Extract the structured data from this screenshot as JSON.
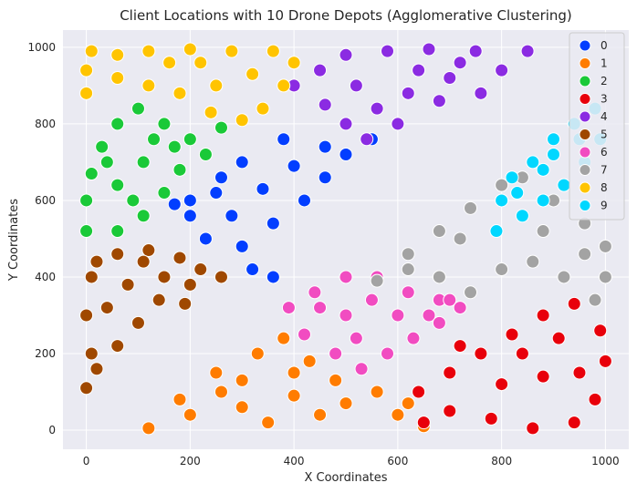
{
  "chart_data": {
    "type": "scatter",
    "title": "Client Locations with 10 Drone Depots (Agglomerative Clustering)",
    "xlabel": "X Coordinates",
    "ylabel": "Y Coordinates",
    "xlim": [
      -45,
      1045
    ],
    "ylim": [
      -50,
      1045
    ],
    "xticks": [
      0,
      200,
      400,
      600,
      800,
      1000
    ],
    "yticks": [
      0,
      200,
      400,
      600,
      800,
      1000
    ],
    "grid": true,
    "legend_position": "top-right",
    "series": [
      {
        "name": "0",
        "color": "#023eff",
        "points": [
          [
            380,
            760
          ],
          [
            300,
            700
          ],
          [
            250,
            620
          ],
          [
            200,
            560
          ],
          [
            230,
            500
          ],
          [
            300,
            480
          ],
          [
            360,
            540
          ],
          [
            420,
            600
          ],
          [
            460,
            660
          ],
          [
            500,
            720
          ],
          [
            550,
            760
          ],
          [
            460,
            740
          ],
          [
            340,
            630
          ],
          [
            280,
            560
          ],
          [
            200,
            600
          ],
          [
            360,
            400
          ],
          [
            320,
            420
          ],
          [
            400,
            690
          ],
          [
            260,
            660
          ],
          [
            170,
            590
          ]
        ]
      },
      {
        "name": "1",
        "color": "#ff7c00",
        "points": [
          [
            120,
            5
          ],
          [
            200,
            40
          ],
          [
            300,
            60
          ],
          [
            400,
            90
          ],
          [
            500,
            70
          ],
          [
            600,
            40
          ],
          [
            650,
            10
          ],
          [
            250,
            150
          ],
          [
            330,
            200
          ],
          [
            380,
            240
          ],
          [
            430,
            180
          ],
          [
            480,
            130
          ],
          [
            560,
            100
          ],
          [
            450,
            40
          ],
          [
            350,
            20
          ],
          [
            260,
            100
          ],
          [
            180,
            80
          ],
          [
            620,
            70
          ],
          [
            400,
            150
          ],
          [
            300,
            130
          ]
        ]
      },
      {
        "name": "2",
        "color": "#1ac938",
        "points": [
          [
            0,
            520
          ],
          [
            0,
            600
          ],
          [
            10,
            670
          ],
          [
            30,
            740
          ],
          [
            60,
            800
          ],
          [
            100,
            840
          ],
          [
            150,
            800
          ],
          [
            200,
            760
          ],
          [
            260,
            790
          ],
          [
            230,
            720
          ],
          [
            180,
            680
          ],
          [
            150,
            620
          ],
          [
            110,
            560
          ],
          [
            60,
            520
          ],
          [
            110,
            700
          ],
          [
            60,
            640
          ],
          [
            170,
            740
          ],
          [
            130,
            760
          ],
          [
            40,
            700
          ],
          [
            90,
            600
          ]
        ]
      },
      {
        "name": "3",
        "color": "#e8000b",
        "points": [
          [
            640,
            100
          ],
          [
            700,
            150
          ],
          [
            760,
            200
          ],
          [
            820,
            250
          ],
          [
            880,
            300
          ],
          [
            940,
            330
          ],
          [
            990,
            260
          ],
          [
            1000,
            180
          ],
          [
            980,
            80
          ],
          [
            940,
            20
          ],
          [
            860,
            5
          ],
          [
            780,
            30
          ],
          [
            700,
            50
          ],
          [
            650,
            20
          ],
          [
            880,
            140
          ],
          [
            800,
            120
          ],
          [
            720,
            220
          ],
          [
            950,
            150
          ],
          [
            840,
            200
          ],
          [
            910,
            240
          ]
        ]
      },
      {
        "name": "4",
        "color": "#8b2be2",
        "points": [
          [
            400,
            900
          ],
          [
            450,
            940
          ],
          [
            500,
            980
          ],
          [
            580,
            990
          ],
          [
            660,
            995
          ],
          [
            750,
            990
          ],
          [
            850,
            990
          ],
          [
            800,
            940
          ],
          [
            700,
            920
          ],
          [
            620,
            880
          ],
          [
            560,
            840
          ],
          [
            500,
            800
          ],
          [
            460,
            850
          ],
          [
            760,
            880
          ],
          [
            680,
            860
          ],
          [
            600,
            800
          ],
          [
            540,
            760
          ],
          [
            720,
            960
          ],
          [
            640,
            940
          ],
          [
            520,
            900
          ]
        ]
      },
      {
        "name": "5",
        "color": "#9f4800",
        "points": [
          [
            0,
            110
          ],
          [
            10,
            200
          ],
          [
            0,
            300
          ],
          [
            10,
            400
          ],
          [
            20,
            440
          ],
          [
            60,
            460
          ],
          [
            120,
            470
          ],
          [
            180,
            450
          ],
          [
            220,
            420
          ],
          [
            260,
            400
          ],
          [
            200,
            380
          ],
          [
            140,
            340
          ],
          [
            100,
            280
          ],
          [
            60,
            220
          ],
          [
            20,
            160
          ],
          [
            80,
            380
          ],
          [
            150,
            400
          ],
          [
            40,
            320
          ],
          [
            110,
            440
          ],
          [
            190,
            330
          ]
        ]
      },
      {
        "name": "6",
        "color": "#f14cc1",
        "points": [
          [
            390,
            320
          ],
          [
            440,
            360
          ],
          [
            500,
            400
          ],
          [
            560,
            400
          ],
          [
            620,
            360
          ],
          [
            680,
            340
          ],
          [
            720,
            320
          ],
          [
            680,
            280
          ],
          [
            630,
            240
          ],
          [
            580,
            200
          ],
          [
            530,
            160
          ],
          [
            480,
            200
          ],
          [
            420,
            250
          ],
          [
            500,
            300
          ],
          [
            600,
            300
          ],
          [
            550,
            340
          ],
          [
            450,
            320
          ],
          [
            660,
            300
          ],
          [
            520,
            240
          ],
          [
            700,
            340
          ]
        ]
      },
      {
        "name": "7",
        "color": "#a3a3a3",
        "points": [
          [
            560,
            390
          ],
          [
            620,
            460
          ],
          [
            680,
            520
          ],
          [
            740,
            580
          ],
          [
            800,
            640
          ],
          [
            840,
            660
          ],
          [
            900,
            600
          ],
          [
            960,
            540
          ],
          [
            1000,
            480
          ],
          [
            1000,
            400
          ],
          [
            980,
            340
          ],
          [
            920,
            400
          ],
          [
            860,
            440
          ],
          [
            800,
            420
          ],
          [
            740,
            360
          ],
          [
            680,
            400
          ],
          [
            620,
            420
          ],
          [
            720,
            500
          ],
          [
            880,
            520
          ],
          [
            960,
            460
          ]
        ]
      },
      {
        "name": "8",
        "color": "#ffc400",
        "points": [
          [
            0,
            880
          ],
          [
            0,
            940
          ],
          [
            10,
            990
          ],
          [
            60,
            980
          ],
          [
            120,
            990
          ],
          [
            200,
            995
          ],
          [
            280,
            990
          ],
          [
            360,
            990
          ],
          [
            400,
            960
          ],
          [
            380,
            900
          ],
          [
            340,
            840
          ],
          [
            300,
            810
          ],
          [
            240,
            830
          ],
          [
            180,
            880
          ],
          [
            120,
            900
          ],
          [
            60,
            920
          ],
          [
            160,
            960
          ],
          [
            250,
            900
          ],
          [
            320,
            930
          ],
          [
            220,
            960
          ]
        ]
      },
      {
        "name": "9",
        "color": "#00d7ff",
        "points": [
          [
            790,
            520
          ],
          [
            800,
            600
          ],
          [
            820,
            660
          ],
          [
            860,
            700
          ],
          [
            900,
            760
          ],
          [
            940,
            800
          ],
          [
            980,
            840
          ],
          [
            990,
            760
          ],
          [
            960,
            700
          ],
          [
            920,
            640
          ],
          [
            880,
            600
          ],
          [
            840,
            560
          ],
          [
            830,
            620
          ],
          [
            880,
            680
          ],
          [
            950,
            760
          ],
          [
            900,
            720
          ]
        ]
      }
    ]
  }
}
